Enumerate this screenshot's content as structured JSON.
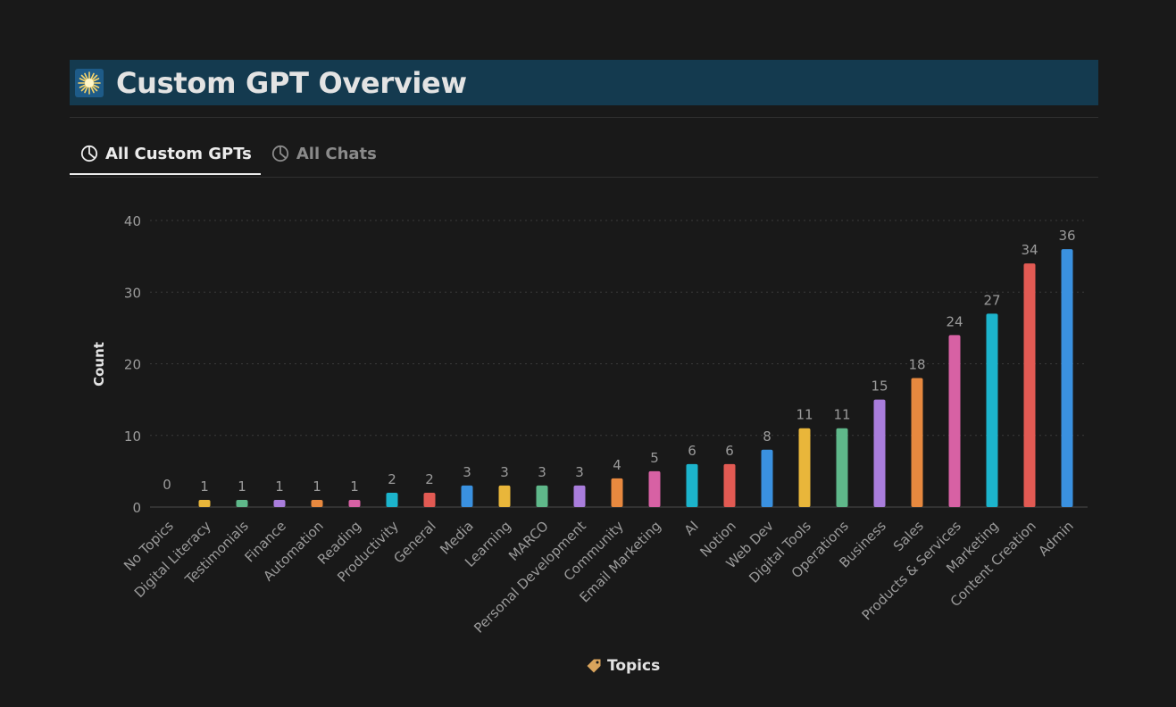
{
  "header": {
    "title": "Custom GPT Overview",
    "icon": "sparkle-icon"
  },
  "tabs": [
    {
      "label": "All Custom GPTs",
      "active": true,
      "icon": "pie-chart-icon"
    },
    {
      "label": "All Chats",
      "active": false,
      "icon": "pie-chart-icon"
    }
  ],
  "colors": {
    "background": "#191919",
    "title_bar": "#143a4f",
    "yellow": "#e9b63a",
    "green": "#5fb88a",
    "purple": "#a97ddc",
    "orange": "#e8893f",
    "pink": "#d761a4",
    "cyan": "#1cb4cc",
    "red": "#e25a53",
    "blue": "#3a91e0"
  },
  "chart_data": {
    "type": "bar",
    "title": "",
    "xlabel": "Topics",
    "ylabel": "Count",
    "ylim": [
      0,
      40
    ],
    "yticks": [
      0,
      10,
      20,
      30,
      40
    ],
    "grid": true,
    "categories": [
      "No Topics",
      "Digital Literacy",
      "Testimonials",
      "Finance",
      "Automation",
      "Reading",
      "Productivity",
      "General",
      "Media",
      "Learning",
      "MARCO",
      "Personal Development",
      "Community",
      "Email Marketing",
      "AI",
      "Notion",
      "Web Dev",
      "Digital Tools",
      "Operations",
      "Business",
      "Sales",
      "Products & Services",
      "Marketing",
      "Content Creation",
      "Admin"
    ],
    "values": [
      0,
      1,
      1,
      1,
      1,
      1,
      2,
      2,
      3,
      3,
      3,
      3,
      4,
      5,
      6,
      6,
      8,
      11,
      11,
      15,
      18,
      24,
      27,
      34,
      36
    ],
    "bar_colors": [
      "#e9b63a",
      "#e9b63a",
      "#5fb88a",
      "#a97ddc",
      "#e8893f",
      "#d761a4",
      "#1cb4cc",
      "#e25a53",
      "#3a91e0",
      "#e9b63a",
      "#5fb88a",
      "#a97ddc",
      "#e8893f",
      "#d761a4",
      "#1cb4cc",
      "#e25a53",
      "#3a91e0",
      "#e9b63a",
      "#5fb88a",
      "#a97ddc",
      "#e8893f",
      "#d761a4",
      "#1cb4cc",
      "#e25a53",
      "#3a91e0"
    ]
  }
}
